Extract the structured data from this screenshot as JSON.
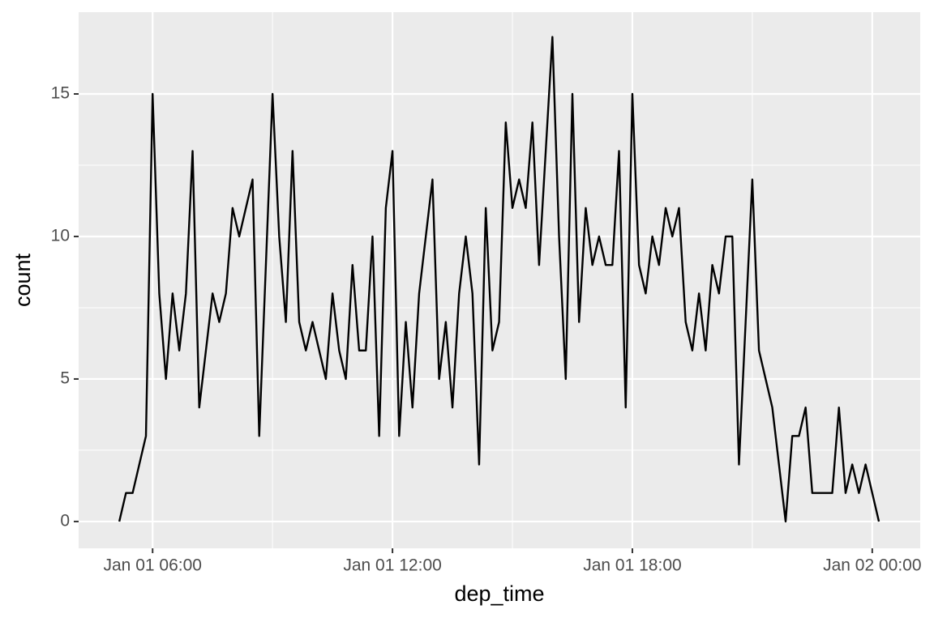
{
  "chart_data": {
    "type": "line",
    "x_label": "dep_time",
    "y_label": "count",
    "x": [
      "Jan 01 05:10",
      "Jan 01 05:20",
      "Jan 01 05:30",
      "Jan 01 05:40",
      "Jan 01 05:50",
      "Jan 01 06:00",
      "Jan 01 06:10",
      "Jan 01 06:20",
      "Jan 01 06:30",
      "Jan 01 06:40",
      "Jan 01 06:50",
      "Jan 01 07:00",
      "Jan 01 07:10",
      "Jan 01 07:20",
      "Jan 01 07:30",
      "Jan 01 07:40",
      "Jan 01 07:50",
      "Jan 01 08:00",
      "Jan 01 08:10",
      "Jan 01 08:20",
      "Jan 01 08:30",
      "Jan 01 08:40",
      "Jan 01 08:50",
      "Jan 01 09:00",
      "Jan 01 09:10",
      "Jan 01 09:20",
      "Jan 01 09:30",
      "Jan 01 09:40",
      "Jan 01 09:50",
      "Jan 01 10:00",
      "Jan 01 10:10",
      "Jan 01 10:20",
      "Jan 01 10:30",
      "Jan 01 10:40",
      "Jan 01 10:50",
      "Jan 01 11:00",
      "Jan 01 11:10",
      "Jan 01 11:20",
      "Jan 01 11:30",
      "Jan 01 11:40",
      "Jan 01 11:50",
      "Jan 01 12:00",
      "Jan 01 12:10",
      "Jan 01 12:20",
      "Jan 01 12:30",
      "Jan 01 12:40",
      "Jan 01 12:50",
      "Jan 01 13:00",
      "Jan 01 13:10",
      "Jan 01 13:20",
      "Jan 01 13:30",
      "Jan 01 13:40",
      "Jan 01 13:50",
      "Jan 01 14:00",
      "Jan 01 14:10",
      "Jan 01 14:20",
      "Jan 01 14:30",
      "Jan 01 14:40",
      "Jan 01 14:50",
      "Jan 01 15:00",
      "Jan 01 15:10",
      "Jan 01 15:20",
      "Jan 01 15:30",
      "Jan 01 15:40",
      "Jan 01 15:50",
      "Jan 01 16:00",
      "Jan 01 16:10",
      "Jan 01 16:20",
      "Jan 01 16:30",
      "Jan 01 16:40",
      "Jan 01 16:50",
      "Jan 01 17:00",
      "Jan 01 17:10",
      "Jan 01 17:20",
      "Jan 01 17:30",
      "Jan 01 17:40",
      "Jan 01 17:50",
      "Jan 01 18:00",
      "Jan 01 18:10",
      "Jan 01 18:20",
      "Jan 01 18:30",
      "Jan 01 18:40",
      "Jan 01 18:50",
      "Jan 01 19:00",
      "Jan 01 19:10",
      "Jan 01 19:20",
      "Jan 01 19:30",
      "Jan 01 19:40",
      "Jan 01 19:50",
      "Jan 01 20:00",
      "Jan 01 20:10",
      "Jan 01 20:20",
      "Jan 01 20:30",
      "Jan 01 20:40",
      "Jan 01 20:50",
      "Jan 01 21:00",
      "Jan 01 21:10",
      "Jan 01 21:20",
      "Jan 01 21:30",
      "Jan 01 21:40",
      "Jan 01 21:50",
      "Jan 01 22:00",
      "Jan 01 22:10",
      "Jan 01 22:20",
      "Jan 01 22:30",
      "Jan 01 22:40",
      "Jan 01 22:50",
      "Jan 01 23:00",
      "Jan 01 23:10",
      "Jan 01 23:20",
      "Jan 01 23:30",
      "Jan 01 23:40",
      "Jan 01 23:50",
      "Jan 02 00:00",
      "Jan 02 00:10"
    ],
    "series": [
      {
        "color": "#000000",
        "values": [
          0,
          1,
          1,
          2,
          3,
          15,
          8,
          5,
          8,
          6,
          8,
          13,
          4,
          6,
          8,
          7,
          8,
          11,
          10,
          11,
          12,
          3,
          9,
          15,
          10,
          7,
          13,
          7,
          6,
          7,
          6,
          5,
          8,
          6,
          5,
          9,
          6,
          6,
          10,
          3,
          11,
          13,
          3,
          7,
          4,
          8,
          10,
          12,
          5,
          7,
          4,
          8,
          10,
          8,
          2,
          11,
          6,
          7,
          14,
          11,
          12,
          11,
          14,
          9,
          13,
          17,
          10,
          5,
          15,
          7,
          11,
          9,
          10,
          9,
          9,
          13,
          4,
          15,
          9,
          8,
          10,
          9,
          11,
          10,
          11,
          7,
          6,
          8,
          6,
          9,
          8,
          10,
          10,
          2,
          7,
          12,
          6,
          5,
          4,
          2,
          0,
          3,
          3,
          4,
          1,
          1,
          1,
          1,
          4,
          1,
          2,
          1,
          2,
          1,
          0
        ]
      }
    ],
    "xlim": [
      "Jan 01 04:09",
      "Jan 02 01:12"
    ],
    "xticks": [
      "Jan 01 06:00",
      "Jan 01 12:00",
      "Jan 01 18:00",
      "Jan 02 00:00"
    ],
    "ylim": [
      -0.94,
      17.87
    ],
    "yticks": [
      0,
      5,
      10,
      15
    ],
    "grid": true
  }
}
